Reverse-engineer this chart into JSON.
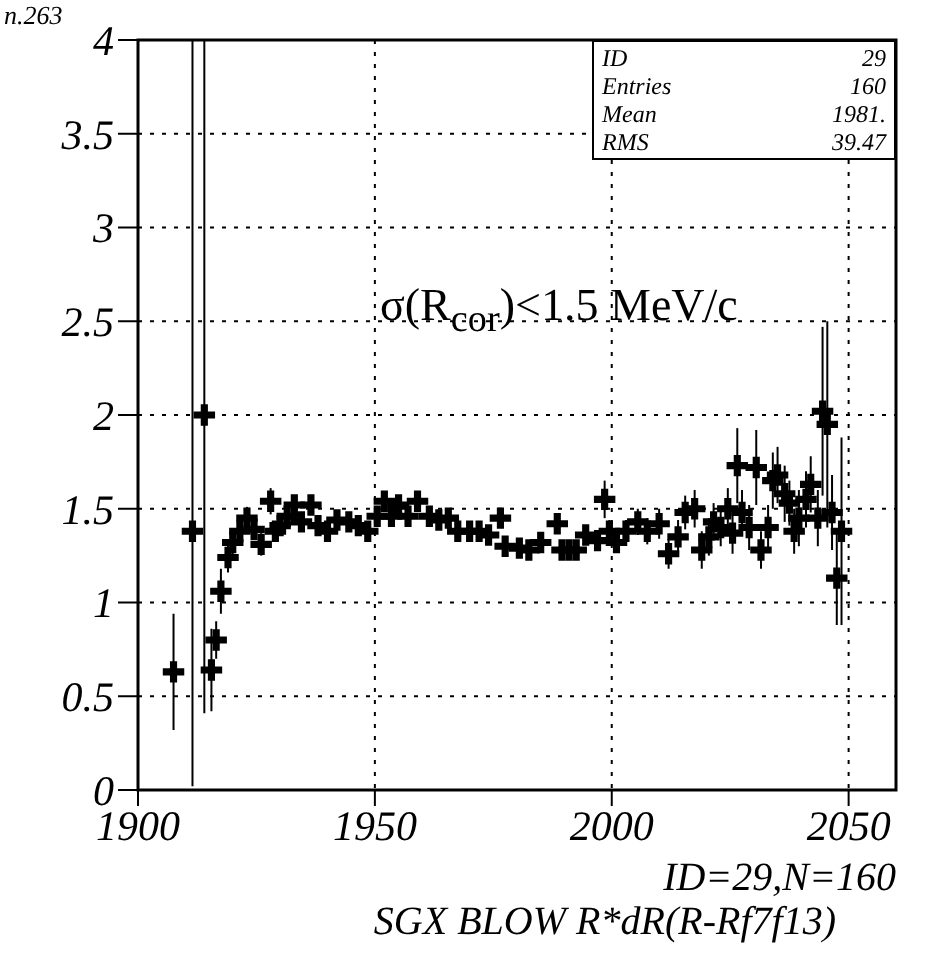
{
  "chart_data": {
    "type": "scatter",
    "title": "SGX BLOW R*dR(R-Rf7f13)",
    "annotations": [
      "n.263",
      "ID",
      "29",
      "Entries",
      "160",
      "Mean",
      "1981.",
      "RMS",
      "39.47",
      "σ(R$_{cor}$)<1.5 MeV/c",
      "ID=29,N=160"
    ],
    "xlim": [
      1900,
      2060
    ],
    "xticks": [
      1900,
      1950,
      2000,
      2050
    ],
    "ylim": [
      0,
      4
    ],
    "yticks": [
      0,
      0.5,
      1,
      1.5,
      2,
      2.5,
      3,
      3.5,
      4
    ],
    "grid": true,
    "legend": false,
    "marker": "cross",
    "series": [
      {
        "color": "#000000",
        "x": [
          1907.5,
          1911.5,
          1914,
          1915.5,
          1916.5,
          1917.5,
          1919,
          1920,
          1921.5,
          1923,
          1924.5,
          1926,
          1928,
          1929,
          1930,
          1931.5,
          1933,
          1934.5,
          1936.5,
          1938,
          1940,
          1942,
          1944.5,
          1946.5,
          1948.5,
          1950.5,
          1952,
          1953.5,
          1955,
          1957,
          1959,
          1961.5,
          1963.5,
          1965.5,
          1967.5,
          1970,
          1972,
          1974,
          1976.5,
          1977.5,
          1980.5,
          1982.5,
          1985,
          1988.5,
          1989.5,
          1991,
          1992.5,
          1994.5,
          1997,
          1998.5,
          1999.5,
          2001,
          2003,
          2005.5,
          2007.5,
          2010,
          2012,
          2014,
          2015.5,
          2017.5,
          2019,
          2020.5,
          2021.5,
          2023,
          2024.5,
          2025.5,
          2026.5,
          2027.5,
          2029,
          2030.5,
          2031.5,
          2033,
          2034,
          2035,
          2036.5,
          2037.5,
          2038.5,
          2039.5,
          2041,
          2042,
          2043.5,
          2044.5,
          2045.5,
          2046.5,
          2047.5,
          2048.5
        ],
        "values": [
          0.63,
          1.38,
          2.0,
          0.64,
          0.8,
          1.06,
          1.24,
          1.32,
          1.38,
          1.45,
          1.39,
          1.31,
          1.54,
          1.38,
          1.41,
          1.46,
          1.52,
          1.43,
          1.52,
          1.41,
          1.38,
          1.44,
          1.43,
          1.41,
          1.38,
          1.46,
          1.54,
          1.46,
          1.52,
          1.46,
          1.54,
          1.46,
          1.44,
          1.45,
          1.38,
          1.38,
          1.38,
          1.36,
          1.45,
          1.3,
          1.29,
          1.28,
          1.32,
          1.42,
          1.28,
          1.28,
          1.28,
          1.36,
          1.33,
          1.55,
          1.38,
          1.32,
          1.38,
          1.43,
          1.38,
          1.42,
          1.26,
          1.35,
          1.48,
          1.5,
          1.28,
          1.35,
          1.43,
          1.4,
          1.5,
          1.37,
          1.73,
          1.48,
          1.4,
          1.72,
          1.28,
          1.4,
          1.65,
          1.68,
          1.58,
          1.53,
          1.38,
          1.45,
          1.55,
          1.63,
          1.45,
          2.02,
          1.95,
          1.48,
          1.13,
          1.38
        ],
        "errors": [
          0.31,
          [
            0.02,
            4
          ],
          [
            0.41,
            4
          ],
          0.22,
          0.1,
          0.12,
          0.08,
          0.07,
          0.06,
          0.06,
          0.05,
          0.06,
          0.07,
          0.05,
          0.05,
          0.05,
          0.05,
          0.05,
          0.05,
          0.04,
          0.04,
          0.04,
          0.04,
          0.04,
          0.04,
          0.05,
          0.04,
          0.04,
          0.04,
          0.04,
          0.04,
          0.04,
          0.04,
          0.04,
          0.04,
          0.04,
          0.04,
          0.04,
          0.05,
          0.04,
          0.04,
          0.05,
          0.05,
          0.05,
          0.05,
          0.05,
          0.05,
          0.05,
          0.05,
          0.1,
          0.06,
          0.05,
          0.06,
          0.07,
          0.07,
          0.08,
          0.08,
          0.09,
          0.09,
          0.1,
          0.1,
          0.1,
          0.1,
          0.1,
          0.11,
          0.11,
          0.2,
          0.12,
          0.12,
          0.2,
          0.1,
          0.12,
          0.15,
          0.15,
          0.15,
          0.12,
          0.12,
          0.15,
          0.15,
          0.15,
          0.15,
          0.45,
          0.55,
          0.2,
          0.25,
          0.5
        ]
      }
    ]
  }
}
